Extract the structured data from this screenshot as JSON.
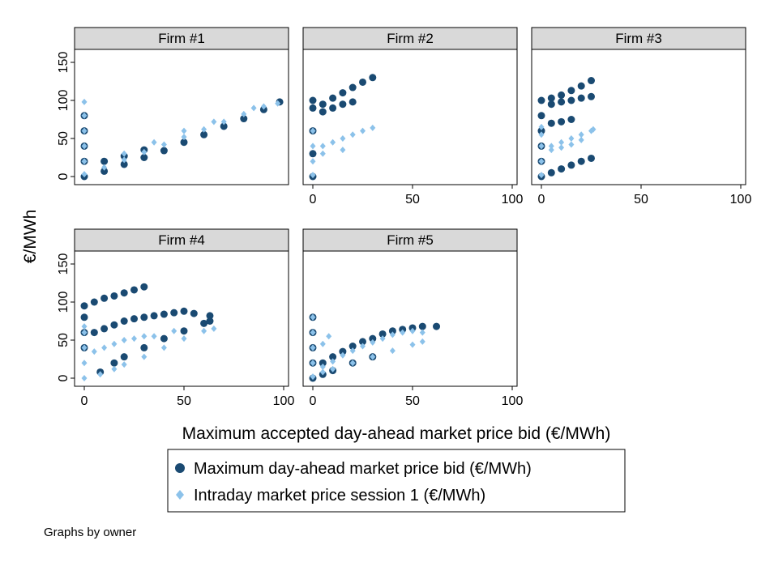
{
  "chart_data": {
    "type": "scatter",
    "title": "",
    "xlabel": "Maximum accepted day-ahead market price bid (€/MWh)",
    "ylabel": "€/MWh",
    "xlim": [
      0,
      100
    ],
    "ylim": [
      0,
      150
    ],
    "xticks": [
      "0",
      "50",
      "100"
    ],
    "yticks": [
      "0",
      "50",
      "100",
      "150"
    ],
    "grid": false,
    "legend_position": "bottom",
    "note": "Graphs by owner",
    "colors": {
      "day_ahead": "#1a4a72",
      "intraday": "#8cc2ea"
    },
    "series_names": [
      "Maximum day-ahead market price bid (€/MWh)",
      "Intraday market price session 1 (€/MWh)"
    ],
    "panels": [
      {
        "title": "Firm #1",
        "day_ahead": [
          [
            0,
            0
          ],
          [
            0,
            20
          ],
          [
            0,
            40
          ],
          [
            0,
            60
          ],
          [
            0,
            80
          ],
          [
            10,
            7
          ],
          [
            20,
            16
          ],
          [
            30,
            25
          ],
          [
            40,
            34
          ],
          [
            50,
            45
          ],
          [
            60,
            55
          ],
          [
            70,
            66
          ],
          [
            80,
            76
          ],
          [
            90,
            88
          ],
          [
            98,
            98
          ],
          [
            10,
            20
          ],
          [
            20,
            27
          ],
          [
            30,
            35
          ]
        ],
        "intraday": [
          [
            0,
            3
          ],
          [
            0,
            20
          ],
          [
            0,
            40
          ],
          [
            0,
            60
          ],
          [
            0,
            80
          ],
          [
            0,
            98
          ],
          [
            10,
            12
          ],
          [
            20,
            22
          ],
          [
            30,
            32
          ],
          [
            40,
            42
          ],
          [
            50,
            52
          ],
          [
            60,
            62
          ],
          [
            70,
            72
          ],
          [
            80,
            82
          ],
          [
            90,
            92
          ],
          [
            97,
            96
          ],
          [
            20,
            30
          ],
          [
            35,
            45
          ],
          [
            50,
            60
          ],
          [
            65,
            72
          ],
          [
            85,
            90
          ]
        ]
      },
      {
        "title": "Firm #2",
        "day_ahead": [
          [
            0,
            0
          ],
          [
            0,
            30
          ],
          [
            0,
            60
          ],
          [
            0,
            90
          ],
          [
            0,
            100
          ],
          [
            5,
            95
          ],
          [
            10,
            103
          ],
          [
            15,
            110
          ],
          [
            20,
            117
          ],
          [
            25,
            124
          ],
          [
            30,
            130
          ],
          [
            5,
            85
          ],
          [
            10,
            90
          ],
          [
            15,
            95
          ],
          [
            20,
            98
          ]
        ],
        "intraday": [
          [
            0,
            2
          ],
          [
            0,
            20
          ],
          [
            0,
            40
          ],
          [
            0,
            60
          ],
          [
            5,
            40
          ],
          [
            10,
            45
          ],
          [
            15,
            50
          ],
          [
            20,
            55
          ],
          [
            25,
            60
          ],
          [
            30,
            64
          ],
          [
            5,
            30
          ],
          [
            15,
            35
          ]
        ]
      },
      {
        "title": "Firm #3",
        "day_ahead": [
          [
            0,
            0
          ],
          [
            0,
            20
          ],
          [
            0,
            40
          ],
          [
            0,
            60
          ],
          [
            0,
            80
          ],
          [
            0,
            100
          ],
          [
            5,
            5
          ],
          [
            10,
            10
          ],
          [
            15,
            15
          ],
          [
            20,
            20
          ],
          [
            25,
            24
          ],
          [
            5,
            103
          ],
          [
            10,
            107
          ],
          [
            15,
            113
          ],
          [
            20,
            119
          ],
          [
            25,
            126
          ],
          [
            5,
            95
          ],
          [
            10,
            98
          ],
          [
            15,
            100
          ],
          [
            20,
            103
          ],
          [
            25,
            105
          ],
          [
            5,
            70
          ],
          [
            10,
            72
          ],
          [
            15,
            75
          ]
        ],
        "intraday": [
          [
            0,
            2
          ],
          [
            0,
            20
          ],
          [
            0,
            40
          ],
          [
            0,
            55
          ],
          [
            0,
            65
          ],
          [
            5,
            40
          ],
          [
            10,
            45
          ],
          [
            15,
            50
          ],
          [
            20,
            55
          ],
          [
            25,
            60
          ],
          [
            5,
            35
          ],
          [
            10,
            38
          ],
          [
            15,
            42
          ],
          [
            20,
            48
          ],
          [
            26,
            62
          ]
        ]
      },
      {
        "title": "Firm #4",
        "day_ahead": [
          [
            0,
            40
          ],
          [
            0,
            60
          ],
          [
            0,
            80
          ],
          [
            0,
            95
          ],
          [
            5,
            100
          ],
          [
            10,
            105
          ],
          [
            15,
            108
          ],
          [
            20,
            112
          ],
          [
            25,
            116
          ],
          [
            30,
            120
          ],
          [
            5,
            60
          ],
          [
            10,
            65
          ],
          [
            15,
            70
          ],
          [
            20,
            75
          ],
          [
            25,
            78
          ],
          [
            30,
            80
          ],
          [
            35,
            82
          ],
          [
            40,
            84
          ],
          [
            45,
            86
          ],
          [
            50,
            88
          ],
          [
            55,
            85
          ],
          [
            63,
            82
          ],
          [
            8,
            8
          ],
          [
            15,
            20
          ],
          [
            20,
            28
          ],
          [
            30,
            40
          ],
          [
            40,
            52
          ],
          [
            50,
            62
          ],
          [
            60,
            72
          ],
          [
            63,
            75
          ]
        ],
        "intraday": [
          [
            0,
            0
          ],
          [
            0,
            20
          ],
          [
            0,
            40
          ],
          [
            0,
            60
          ],
          [
            0,
            68
          ],
          [
            5,
            35
          ],
          [
            10,
            40
          ],
          [
            15,
            45
          ],
          [
            20,
            50
          ],
          [
            25,
            52
          ],
          [
            30,
            55
          ],
          [
            8,
            5
          ],
          [
            15,
            12
          ],
          [
            20,
            18
          ],
          [
            30,
            28
          ],
          [
            40,
            40
          ],
          [
            50,
            52
          ],
          [
            60,
            62
          ],
          [
            65,
            65
          ],
          [
            35,
            55
          ],
          [
            45,
            62
          ]
        ]
      },
      {
        "title": "Firm #5",
        "day_ahead": [
          [
            0,
            0
          ],
          [
            0,
            20
          ],
          [
            0,
            40
          ],
          [
            0,
            60
          ],
          [
            0,
            80
          ],
          [
            5,
            20
          ],
          [
            10,
            28
          ],
          [
            15,
            35
          ],
          [
            20,
            42
          ],
          [
            25,
            48
          ],
          [
            30,
            52
          ],
          [
            35,
            58
          ],
          [
            40,
            62
          ],
          [
            45,
            64
          ],
          [
            50,
            66
          ],
          [
            55,
            68
          ],
          [
            62,
            68
          ],
          [
            5,
            5
          ],
          [
            10,
            10
          ],
          [
            20,
            20
          ],
          [
            30,
            28
          ]
        ],
        "intraday": [
          [
            0,
            2
          ],
          [
            0,
            20
          ],
          [
            0,
            40
          ],
          [
            0,
            60
          ],
          [
            0,
            80
          ],
          [
            5,
            15
          ],
          [
            10,
            22
          ],
          [
            15,
            30
          ],
          [
            20,
            36
          ],
          [
            25,
            42
          ],
          [
            30,
            47
          ],
          [
            35,
            52
          ],
          [
            40,
            57
          ],
          [
            45,
            60
          ],
          [
            50,
            62
          ],
          [
            55,
            60
          ],
          [
            5,
            8
          ],
          [
            10,
            12
          ],
          [
            20,
            20
          ],
          [
            30,
            28
          ],
          [
            40,
            36
          ],
          [
            50,
            44
          ],
          [
            55,
            48
          ],
          [
            5,
            45
          ],
          [
            8,
            55
          ]
        ]
      }
    ]
  }
}
